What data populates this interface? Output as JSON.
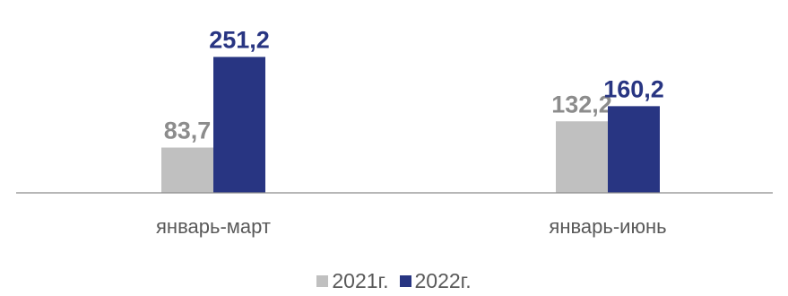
{
  "chart_data": {
    "type": "bar",
    "categories": [
      "январь-март",
      "январь-июнь"
    ],
    "series": [
      {
        "name": "2021г.",
        "values": [
          83.7,
          132.2
        ],
        "labels": [
          "83,7",
          "132,2"
        ],
        "color": "#c0c0c0",
        "label_color": "#8c8c8c"
      },
      {
        "name": "2022г.",
        "values": [
          251.2,
          160.2
        ],
        "labels": [
          "251,2",
          "160,2"
        ],
        "color": "#283582",
        "label_color": "#283582"
      }
    ],
    "title": "",
    "xlabel": "",
    "ylabel": "",
    "ylim": [
      0,
      310
    ],
    "grid": false,
    "legend_position": "bottom-center"
  }
}
